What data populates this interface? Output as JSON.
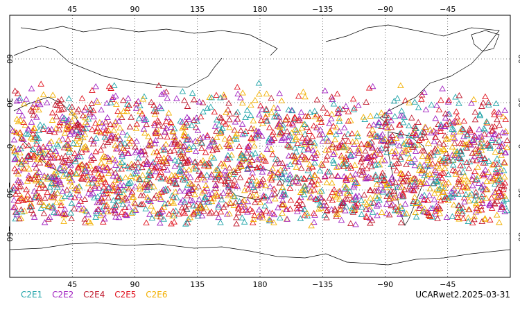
{
  "map": {
    "projection": "equirectangular",
    "lon_range": [
      0,
      360
    ],
    "lat_range": [
      -90,
      90
    ],
    "grid": "dotted",
    "lon_ticks": [
      "45",
      "90",
      "135",
      "180",
      "−135",
      "−90",
      "−45"
    ],
    "lat_ticks": [
      "60",
      "30",
      "0",
      "−30",
      "−60"
    ],
    "marker": "open-triangle",
    "obs_lat_band": [
      -50,
      45
    ]
  },
  "legend": [
    {
      "label": "C2E1",
      "color": "#1fa3a8"
    },
    {
      "label": "C2E2",
      "color": "#a020c0"
    },
    {
      "label": "C2E4",
      "color": "#c0182c"
    },
    {
      "label": "C2E5",
      "color": "#e0101c"
    },
    {
      "label": "C2E6",
      "color": "#f2b000"
    }
  ],
  "caption": "UCARwet2.2025-03-31"
}
